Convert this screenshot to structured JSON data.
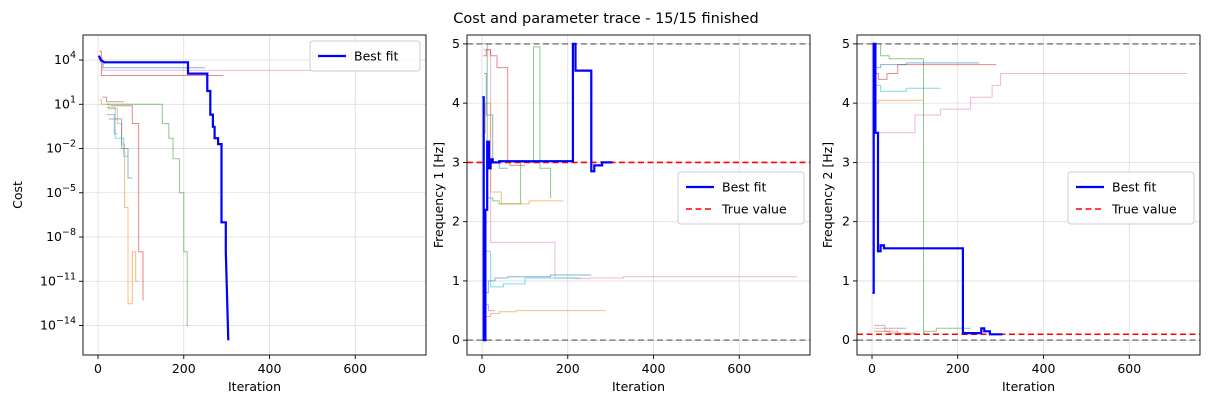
{
  "figure": {
    "title": "Cost and parameter trace - 15/15 finished"
  },
  "chart_data": [
    {
      "type": "line",
      "id": "cost",
      "xlabel": "Iteration",
      "ylabel": "Cost",
      "yscale": "log",
      "xlim": [
        -35,
        765
      ],
      "ylim": [
        1e-16,
        500000
      ],
      "xticks": [
        0,
        200,
        400,
        600
      ],
      "yticks": [
        10000,
        10,
        0.01,
        1e-05,
        1e-08,
        1e-11,
        1e-14
      ],
      "ytick_labels": [
        "10^4",
        "10^1",
        "10^-2",
        "10^-5",
        "10^-8",
        "10^-11",
        "10^-14"
      ],
      "grid": true,
      "legend": {
        "position": "top-right",
        "entries": [
          {
            "label": "Best fit",
            "color": "#0000ff",
            "style": "solid"
          }
        ]
      },
      "best_fit": {
        "color": "#0000ff",
        "x": [
          2,
          5,
          8,
          12,
          15,
          210,
          210,
          255,
          255,
          262,
          262,
          268,
          268,
          272,
          272,
          280,
          280,
          288,
          288,
          298,
          298,
          304
        ],
        "y": [
          20000,
          12000,
          9500,
          8000,
          7000,
          7000,
          1200,
          1200,
          80,
          80,
          2,
          2,
          0.3,
          0.3,
          0.05,
          0.05,
          0.02,
          0.02,
          1e-07,
          1e-07,
          1e-09,
          1e-15
        ]
      },
      "traces": [
        {
          "color": "#1f77b4",
          "x": [
            3,
            12,
            12,
            250
          ],
          "y": [
            8000,
            8000,
            3000,
            3000
          ]
        },
        {
          "color": "#d62728",
          "x": [
            3,
            8,
            8,
            292
          ],
          "y": [
            40000,
            40000,
            900,
            900
          ]
        },
        {
          "color": "#e377c2",
          "x": [
            3,
            10,
            10,
            735
          ],
          "y": [
            15000,
            15000,
            2000,
            2000
          ]
        },
        {
          "color": "#ff7f0e",
          "x": [
            3,
            8,
            8,
            25,
            25,
            45,
            45,
            55,
            55,
            62,
            62,
            70,
            70,
            80,
            80,
            88,
            88,
            95
          ],
          "y": [
            20,
            20,
            10,
            10,
            5,
            5,
            0.5,
            0.5,
            0.02,
            0.02,
            1e-06,
            1e-06,
            3e-13,
            3e-13,
            1e-09,
            1e-09,
            1e-11,
            1e-11
          ]
        },
        {
          "color": "#2ca02c",
          "x": [
            20,
            150,
            150,
            165,
            165,
            175,
            175,
            190,
            190,
            200,
            200,
            208,
            208,
            210
          ],
          "y": [
            10,
            10,
            0.5,
            0.5,
            0.05,
            0.05,
            0.002,
            0.002,
            1e-05,
            1e-05,
            1e-09,
            1e-09,
            1e-14,
            1e-14
          ]
        },
        {
          "color": "#d62728",
          "x": [
            30,
            80,
            80,
            95,
            95,
            105,
            105
          ],
          "y": [
            8,
            8,
            0.5,
            0.5,
            1e-09,
            1e-09,
            5e-13
          ]
        },
        {
          "color": "#1f77b4",
          "x": [
            25,
            55,
            55,
            70,
            70,
            80
          ],
          "y": [
            1,
            1,
            0.01,
            0.01,
            0.0001,
            0.0001
          ]
        },
        {
          "color": "#17becf",
          "x": [
            20,
            40,
            40,
            60,
            60,
            70
          ],
          "y": [
            6,
            6,
            0.05,
            0.05,
            0.003,
            0.003
          ]
        },
        {
          "color": "#9467bd",
          "x": [
            20,
            38,
            38,
            45
          ],
          "y": [
            2,
            2,
            0.1,
            0.1
          ]
        },
        {
          "color": "#8c564b",
          "x": [
            10,
            20,
            20,
            60
          ],
          "y": [
            30,
            30,
            15,
            15
          ]
        }
      ]
    },
    {
      "type": "line",
      "id": "freq1",
      "xlabel": "Iteration",
      "ylabel": "Frequency 1 [Hz]",
      "xlim": [
        -35,
        765
      ],
      "ylim": [
        -0.25,
        5.15
      ],
      "xticks": [
        0,
        200,
        400,
        600
      ],
      "yticks": [
        0,
        1,
        2,
        3,
        4,
        5
      ],
      "grid": true,
      "bounds": {
        "values": [
          0,
          5
        ],
        "color": "#808080",
        "style": "dashed"
      },
      "true_value": {
        "value": 3,
        "color": "#ff0000",
        "style": "dashed"
      },
      "legend": {
        "position": "center-right",
        "entries": [
          {
            "label": "Best fit",
            "color": "#0000ff",
            "style": "solid"
          },
          {
            "label": "True value",
            "color": "#ff0000",
            "style": "dashed"
          }
        ]
      },
      "best_fit": {
        "color": "#0000ff",
        "x": [
          1,
          4,
          4,
          8,
          8,
          12,
          12,
          16,
          16,
          20,
          20,
          25,
          25,
          40,
          40,
          212,
          212,
          218,
          218,
          255,
          255,
          262,
          262,
          280,
          280,
          304
        ],
        "y": [
          4.1,
          4.1,
          0,
          0,
          2.2,
          2.2,
          3.35,
          3.35,
          2.9,
          2.9,
          3.05,
          3.05,
          3.0,
          3.0,
          3.02,
          3.02,
          5.0,
          5.0,
          4.55,
          4.55,
          2.85,
          2.85,
          2.95,
          2.95,
          3.0,
          3.0
        ]
      },
      "traces": [
        {
          "color": "#e377c2",
          "x": [
            3,
            20,
            20,
            75,
            75,
            170,
            170,
            215,
            215,
            250,
            250,
            330,
            330,
            735
          ],
          "y": [
            4.9,
            4.9,
            1.65,
            1.65,
            1.65,
            1.65,
            1.05,
            1.05,
            1.04,
            1.04,
            1.05,
            1.05,
            1.07,
            1.07
          ]
        },
        {
          "color": "#2ca02c",
          "x": [
            3,
            12,
            12,
            25,
            25,
            40,
            40,
            90,
            90,
            120,
            120,
            135,
            135,
            160,
            160
          ],
          "y": [
            5,
            5,
            2.4,
            2.4,
            2.35,
            2.35,
            2.3,
            2.3,
            3.0,
            3.0,
            4.95,
            4.95,
            2.9,
            2.9,
            2.4
          ]
        },
        {
          "color": "#d62728",
          "x": [
            3,
            10,
            10,
            20,
            20,
            35,
            35,
            60,
            60,
            65,
            65,
            100,
            100
          ],
          "y": [
            4.8,
            4.8,
            4.9,
            4.9,
            4.8,
            4.8,
            4.6,
            4.6,
            3.0,
            3.0,
            2.95,
            2.95,
            2.95
          ]
        },
        {
          "color": "#ff7f0e",
          "x": [
            3,
            8,
            8,
            20,
            20,
            45,
            45,
            110,
            110,
            190
          ],
          "y": [
            3.5,
            3.5,
            4.0,
            4.0,
            2.5,
            2.5,
            2.3,
            2.3,
            2.35,
            2.35
          ]
        },
        {
          "color": "#ff7f0e",
          "x": [
            8,
            20,
            20,
            40,
            40,
            80,
            80,
            290
          ],
          "y": [
            0.4,
            0.4,
            0.45,
            0.45,
            0.48,
            0.48,
            0.5,
            0.5
          ]
        },
        {
          "color": "#1f77b4",
          "x": [
            5,
            15,
            15,
            30,
            30,
            60,
            60,
            160,
            160,
            255
          ],
          "y": [
            0.8,
            0.8,
            1.0,
            1.0,
            1.05,
            1.05,
            1.07,
            1.07,
            1.1,
            1.1
          ]
        },
        {
          "color": "#17becf",
          "x": [
            5,
            20,
            20,
            50,
            50,
            100,
            100,
            230
          ],
          "y": [
            1.5,
            1.5,
            0.9,
            0.9,
            0.95,
            0.95,
            1.05,
            1.05
          ]
        },
        {
          "color": "#1f77b4",
          "x": [
            5,
            10,
            10,
            25,
            25,
            40,
            40,
            60
          ],
          "y": [
            4.5,
            4.5,
            3.8,
            3.8,
            3.0,
            3.0,
            2.9,
            2.9
          ]
        },
        {
          "color": "#9467bd",
          "x": [
            5,
            15,
            15,
            30
          ],
          "y": [
            0.6,
            0.6,
            0.5,
            0.5
          ]
        }
      ]
    },
    {
      "type": "line",
      "id": "freq2",
      "xlabel": "Iteration",
      "ylabel": "Frequency 2 [Hz]",
      "xlim": [
        -35,
        765
      ],
      "ylim": [
        -0.25,
        5.15
      ],
      "xticks": [
        0,
        200,
        400,
        600
      ],
      "yticks": [
        0,
        1,
        2,
        3,
        4,
        5
      ],
      "grid": true,
      "bounds": {
        "values": [
          0,
          5
        ],
        "color": "#808080",
        "style": "dashed"
      },
      "true_value": {
        "value": 0.1,
        "color": "#ff0000",
        "style": "dashed"
      },
      "legend": {
        "position": "center-right",
        "entries": [
          {
            "label": "Best fit",
            "color": "#0000ff",
            "style": "solid"
          },
          {
            "label": "True value",
            "color": "#ff0000",
            "style": "dashed"
          }
        ]
      },
      "best_fit": {
        "color": "#0000ff",
        "x": [
          1,
          4,
          4,
          8,
          8,
          14,
          14,
          20,
          20,
          28,
          28,
          212,
          212,
          255,
          255,
          262,
          262,
          275,
          275,
          304
        ],
        "y": [
          0.8,
          0.8,
          5.0,
          5.0,
          3.5,
          3.5,
          1.5,
          1.5,
          1.6,
          1.6,
          1.55,
          1.55,
          0.12,
          0.12,
          0.2,
          0.2,
          0.15,
          0.15,
          0.1,
          0.1
        ]
      },
      "traces": [
        {
          "color": "#e377c2",
          "x": [
            3,
            30,
            30,
            100,
            100,
            160,
            160,
            230,
            230,
            280,
            280,
            300,
            300,
            735
          ],
          "y": [
            3.5,
            3.5,
            3.5,
            3.5,
            3.8,
            3.8,
            3.9,
            3.9,
            4.1,
            4.1,
            4.3,
            4.3,
            4.5,
            4.5
          ]
        },
        {
          "color": "#2ca02c",
          "x": [
            3,
            20,
            20,
            40,
            40,
            120,
            120,
            122,
            122,
            150,
            150,
            230
          ],
          "y": [
            5,
            5,
            4.8,
            4.8,
            4.75,
            4.75,
            0.1,
            0.1,
            0.15,
            0.15,
            0.2,
            0.2
          ]
        },
        {
          "color": "#d62728",
          "x": [
            3,
            15,
            15,
            35,
            35,
            60,
            60,
            290
          ],
          "y": [
            4.5,
            4.5,
            4.4,
            4.4,
            4.5,
            4.5,
            4.65,
            4.65
          ]
        },
        {
          "color": "#ff7f0e",
          "x": [
            3,
            15,
            15,
            50,
            50,
            120
          ],
          "y": [
            4.0,
            4.0,
            4.05,
            4.05,
            4.05,
            4.05
          ]
        },
        {
          "color": "#17becf",
          "x": [
            3,
            20,
            20,
            80,
            80,
            160
          ],
          "y": [
            4.3,
            4.3,
            4.2,
            4.2,
            4.25,
            4.25
          ]
        },
        {
          "color": "#1f77b4",
          "x": [
            3,
            20,
            20,
            80,
            80,
            250
          ],
          "y": [
            4.6,
            4.6,
            4.65,
            4.65,
            4.68,
            4.68
          ]
        },
        {
          "color": "#ff7f0e",
          "x": [
            5,
            30,
            30,
            60,
            60,
            100
          ],
          "y": [
            0.2,
            0.2,
            0.15,
            0.15,
            0.1,
            0.1
          ]
        },
        {
          "color": "#9467bd",
          "x": [
            5,
            30,
            30,
            80
          ],
          "y": [
            0.25,
            0.25,
            0.2,
            0.2
          ]
        },
        {
          "color": "#8c564b",
          "x": [
            5,
            40,
            40,
            100
          ],
          "y": [
            0.15,
            0.15,
            0.12,
            0.12
          ]
        }
      ]
    }
  ]
}
